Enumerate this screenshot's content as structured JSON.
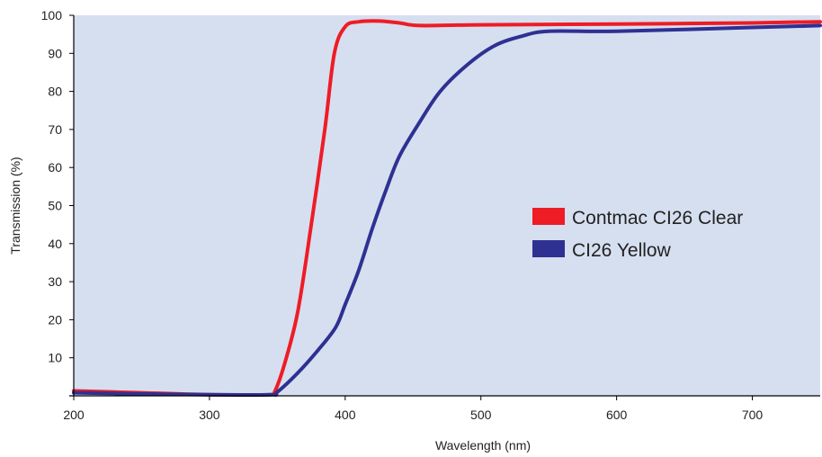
{
  "chart_data": {
    "type": "line",
    "title": "",
    "xlabel": "Wavelength (nm)",
    "ylabel": "Transmission (%)",
    "xlim": [
      200,
      750
    ],
    "ylim": [
      0,
      100
    ],
    "x_ticks": [
      200,
      300,
      400,
      500,
      600,
      700
    ],
    "y_ticks": [
      10,
      20,
      30,
      40,
      50,
      60,
      70,
      80,
      90,
      100
    ],
    "grid": false,
    "legend_position": "center-right",
    "plot_background": "#d6dff0",
    "series": [
      {
        "name": "Contmac CI26 Clear",
        "color": "#ee1c25",
        "x": [
          200,
          250,
          300,
          345,
          348,
          355,
          365,
          375,
          385,
          392,
          400,
          410,
          425,
          440,
          455,
          500,
          600,
          700,
          750
        ],
        "y": [
          1.3,
          0.8,
          0.3,
          0.3,
          1,
          8,
          22,
          45,
          70,
          90,
          97,
          98.3,
          98.5,
          98,
          97.3,
          97.5,
          97.7,
          98,
          98.3
        ]
      },
      {
        "name": "CI26 Yellow",
        "color": "#2e3192",
        "x": [
          200,
          250,
          300,
          345,
          350,
          365,
          380,
          393,
          400,
          410,
          420,
          430,
          440,
          455,
          470,
          490,
          510,
          530,
          550,
          600,
          700,
          750
        ],
        "y": [
          0.8,
          0.5,
          0.3,
          0.3,
          1,
          6,
          12,
          18,
          24,
          33,
          44,
          54,
          63,
          72,
          80,
          87,
          92,
          94.5,
          95.8,
          95.8,
          96.8,
          97.3
        ]
      }
    ]
  }
}
